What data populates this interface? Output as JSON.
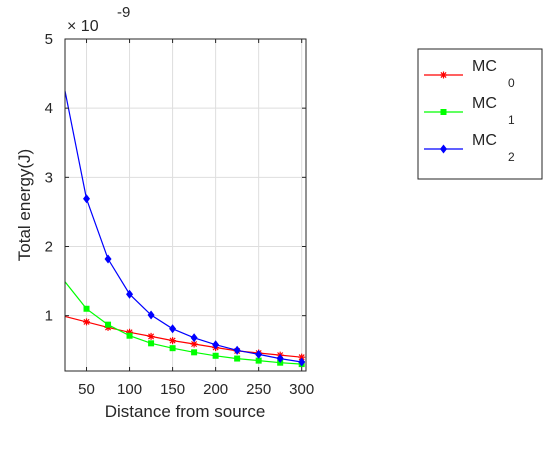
{
  "chart_data": {
    "type": "line",
    "xlabel": "Distance from source",
    "ylabel": "Total energy(J)",
    "y_exponent": {
      "base": "× 10",
      "power": "-9"
    },
    "xlim": [
      25,
      305
    ],
    "ylim": [
      0.2,
      5
    ],
    "x_ticks": [
      50,
      100,
      150,
      200,
      250,
      300
    ],
    "y_ticks": [
      1,
      2,
      3,
      4,
      5
    ],
    "grid": true,
    "legend_position": "top-right",
    "series": [
      {
        "name": "MC",
        "subscript": "0",
        "color": "#ff0000",
        "marker": "asterisk",
        "x": [
          25,
          50,
          75,
          100,
          125,
          150,
          175,
          200,
          225,
          250,
          275,
          300
        ],
        "y": [
          0.99,
          0.91,
          0.83,
          0.76,
          0.7,
          0.64,
          0.59,
          0.54,
          0.49,
          0.46,
          0.43,
          0.4
        ]
      },
      {
        "name": "MC",
        "subscript": "1",
        "color": "#00ff00",
        "marker": "square",
        "x": [
          25,
          50,
          75,
          100,
          125,
          150,
          175,
          200,
          225,
          250,
          275,
          300
        ],
        "y": [
          1.49,
          1.1,
          0.87,
          0.71,
          0.6,
          0.53,
          0.47,
          0.42,
          0.38,
          0.35,
          0.32,
          0.3
        ]
      },
      {
        "name": "MC",
        "subscript": "2",
        "color": "#0000ff",
        "marker": "diamond",
        "x": [
          25,
          50,
          75,
          100,
          125,
          150,
          175,
          200,
          225,
          250,
          275,
          300
        ],
        "y": [
          4.25,
          2.69,
          1.82,
          1.31,
          1.01,
          0.81,
          0.68,
          0.58,
          0.5,
          0.44,
          0.38,
          0.33
        ]
      }
    ]
  }
}
